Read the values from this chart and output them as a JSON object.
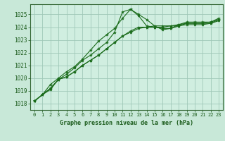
{
  "title": "Graphe pression niveau de la mer (hPa)",
  "background_color": "#c8e8d8",
  "plot_bg_color": "#d0eee0",
  "grid_color": "#a0c8b8",
  "line_color": "#1a6b1a",
  "tick_color": "#1a5a1a",
  "spine_color": "#336633",
  "xlim": [
    -0.5,
    23.5
  ],
  "ylim": [
    1017.5,
    1025.8
  ],
  "yticks": [
    1018,
    1019,
    1020,
    1021,
    1022,
    1023,
    1024,
    1025
  ],
  "xticks": [
    0,
    1,
    2,
    3,
    4,
    5,
    6,
    7,
    8,
    9,
    10,
    11,
    12,
    13,
    14,
    15,
    16,
    17,
    18,
    19,
    20,
    21,
    22,
    23
  ],
  "xtick_labels": [
    "0",
    "1",
    "2",
    "3",
    "4",
    "5",
    "6",
    "7",
    "8",
    "9",
    "10",
    "11",
    "12",
    "13",
    "14",
    "15",
    "16",
    "17",
    "18",
    "19",
    "20",
    "21",
    "22",
    "23"
  ],
  "series": [
    [
      1018.2,
      1018.7,
      1019.1,
      1019.9,
      1020.3,
      1020.8,
      1021.4,
      1021.8,
      1022.3,
      1022.8,
      1023.6,
      1025.2,
      1025.4,
      1025.0,
      1024.6,
      1024.1,
      1023.8,
      1023.9,
      1024.1,
      1024.3,
      1024.3,
      1024.3,
      1024.3,
      1024.6
    ],
    [
      1018.2,
      1018.7,
      1019.2,
      1019.9,
      1020.1,
      1020.5,
      1021.0,
      1021.4,
      1021.8,
      1022.3,
      1022.8,
      1023.3,
      1023.7,
      1024.0,
      1024.0,
      1024.1,
      1024.1,
      1024.1,
      1024.2,
      1024.3,
      1024.3,
      1024.3,
      1024.4,
      1024.6
    ],
    [
      1018.2,
      1018.7,
      1019.2,
      1019.9,
      1020.1,
      1020.5,
      1021.0,
      1021.4,
      1021.8,
      1022.3,
      1022.8,
      1023.3,
      1023.6,
      1023.9,
      1024.0,
      1024.0,
      1024.0,
      1024.1,
      1024.1,
      1024.2,
      1024.2,
      1024.2,
      1024.3,
      1024.5
    ],
    [
      1018.2,
      1018.7,
      1019.5,
      1020.0,
      1020.5,
      1020.9,
      1021.5,
      1022.2,
      1022.9,
      1023.4,
      1023.9,
      1024.7,
      1025.4,
      1024.9,
      1024.1,
      1024.0,
      1023.9,
      1023.9,
      1024.2,
      1024.4,
      1024.4,
      1024.4,
      1024.4,
      1024.7
    ]
  ]
}
